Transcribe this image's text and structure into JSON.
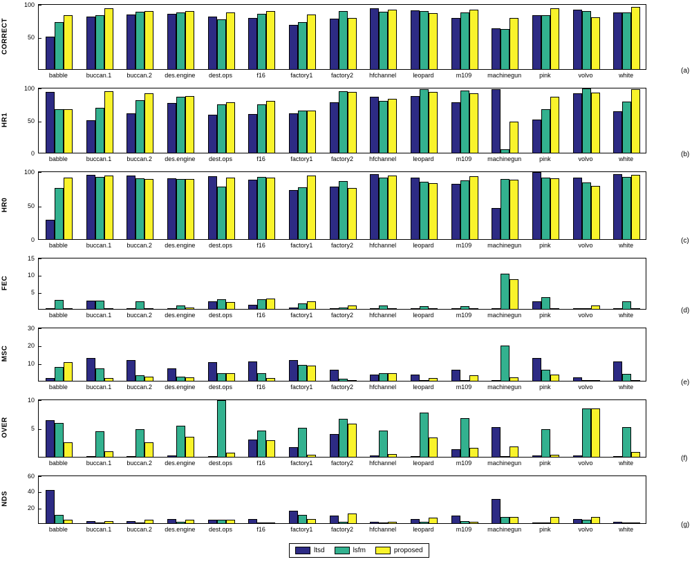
{
  "figure_title": "",
  "legend": {
    "items": [
      {
        "name": "ltsd",
        "color": "#2d2b84"
      },
      {
        "name": "lsfm",
        "color": "#33b18f"
      },
      {
        "name": "proposed",
        "color": "#f9f32b"
      }
    ]
  },
  "chart_data": {
    "type": "bar",
    "grid": false,
    "legend_position": "bottom-center",
    "categories": [
      "babble",
      "buccan.1",
      "buccan.2",
      "des.engine",
      "dest.ops",
      "f16",
      "factory1",
      "factory2",
      "hfchannel",
      "leopard",
      "m109",
      "machinegun",
      "pink",
      "volvo",
      "white"
    ],
    "series_names": [
      "ltsd",
      "lsfm",
      "proposed"
    ],
    "colors": {
      "ltsd": "#2d2b84",
      "lsfm": "#33b18f",
      "proposed": "#f9f32b"
    },
    "panels": [
      {
        "label": "(a)",
        "ylabel": "CORRECT",
        "ylim": [
          0,
          100
        ],
        "yticks": [
          50,
          100
        ],
        "series": {
          "ltsd": [
            50,
            82,
            85,
            86,
            82,
            80,
            69,
            78,
            95,
            91,
            80,
            63,
            84,
            92,
            88
          ],
          "lsfm": [
            73,
            84,
            89,
            88,
            77,
            86,
            73,
            90,
            89,
            90,
            88,
            62,
            84,
            90,
            88
          ],
          "proposed": [
            84,
            95,
            90,
            90,
            88,
            90,
            85,
            80,
            92,
            87,
            93,
            80,
            95,
            81,
            97
          ]
        }
      },
      {
        "label": "(b)",
        "ylabel": "HR1",
        "ylim": [
          0,
          100
        ],
        "yticks": [
          0,
          50,
          100
        ],
        "series": {
          "ltsd": [
            95,
            51,
            61,
            77,
            59,
            60,
            61,
            78,
            87,
            88,
            79,
            99,
            52,
            92,
            64
          ],
          "lsfm": [
            68,
            70,
            82,
            87,
            75,
            75,
            66,
            96,
            81,
            99,
            97,
            5,
            68,
            100,
            80
          ],
          "proposed": [
            68,
            96,
            92,
            88,
            79,
            81,
            66,
            95,
            84,
            95,
            93,
            48,
            87,
            94,
            99
          ]
        }
      },
      {
        "label": "(c)",
        "ylabel": "HR0",
        "ylim": [
          0,
          100
        ],
        "yticks": [
          0,
          50,
          100
        ],
        "series": {
          "ltsd": [
            29,
            96,
            95,
            91,
            94,
            89,
            73,
            78,
            97,
            92,
            82,
            46,
            100,
            92,
            97
          ],
          "lsfm": [
            76,
            93,
            91,
            90,
            78,
            93,
            77,
            87,
            92,
            86,
            88,
            90,
            92,
            85,
            93
          ],
          "proposed": [
            92,
            95,
            90,
            90,
            92,
            92,
            95,
            76,
            95,
            84,
            94,
            89,
            91,
            79,
            96
          ]
        }
      },
      {
        "label": "(d)",
        "ylabel": "FEC",
        "ylim": [
          0,
          15
        ],
        "yticks": [
          5,
          10,
          15
        ],
        "series": {
          "ltsd": [
            0.2,
            2.5,
            0.3,
            0.3,
            2.3,
            1.3,
            0.5,
            0.3,
            0.2,
            0.2,
            0.3,
            0.2,
            2.2,
            0.2,
            0.2
          ],
          "lsfm": [
            2.7,
            2.5,
            2.3,
            1.0,
            2.8,
            2.8,
            1.7,
            0.5,
            1.0,
            0.8,
            0.8,
            10.5,
            3.5,
            0.2,
            2.2
          ],
          "proposed": [
            0.2,
            0.2,
            0.2,
            0.5,
            2.0,
            3.0,
            2.2,
            1.0,
            0.2,
            0.2,
            0.2,
            8.8,
            0.2,
            1.0,
            0.2
          ]
        }
      },
      {
        "label": "(e)",
        "ylabel": "MSC",
        "ylim": [
          0,
          30
        ],
        "yticks": [
          10,
          20,
          30
        ],
        "series": {
          "ltsd": [
            1.5,
            13,
            12,
            7,
            10.5,
            11,
            12,
            6.5,
            3.5,
            3.5,
            6.5,
            0.5,
            13,
            2,
            11
          ],
          "lsfm": [
            8,
            7,
            3,
            2.5,
            4.5,
            4.5,
            9,
            1,
            4.5,
            0.5,
            0.5,
            20,
            6.5,
            0.3,
            4
          ],
          "proposed": [
            10.5,
            1.5,
            2.5,
            2,
            4.5,
            1.5,
            8.5,
            0.5,
            4.5,
            1.5,
            3,
            2,
            3.5,
            0.3,
            0.5
          ]
        }
      },
      {
        "label": "(f)",
        "ylabel": "OVER",
        "ylim": [
          0,
          10
        ],
        "yticks": [
          5,
          10
        ],
        "series": {
          "ltsd": [
            6.5,
            0.1,
            0.1,
            0.2,
            0.1,
            3,
            1.7,
            4,
            0.2,
            0.1,
            1.3,
            5.3,
            0.3,
            0.3,
            0.1
          ],
          "lsfm": [
            6,
            4.5,
            4.9,
            5.5,
            10,
            4.6,
            5.1,
            6.7,
            4.6,
            7.8,
            6.8,
            0.1,
            4.9,
            8.5,
            5.3
          ],
          "proposed": [
            2.5,
            1,
            2.6,
            3.5,
            0.7,
            2.9,
            0.4,
            5.9,
            0.5,
            3.4,
            1.6,
            1.8,
            0.4,
            8.5,
            0.9
          ]
        }
      },
      {
        "label": "(g)",
        "ylabel": "NDS",
        "ylim": [
          0,
          60
        ],
        "yticks": [
          20,
          40,
          60
        ],
        "series": {
          "ltsd": [
            42,
            3,
            3,
            5,
            4,
            5,
            16,
            10,
            2,
            5,
            10,
            31,
            1,
            5,
            2
          ],
          "lsfm": [
            11,
            1,
            1,
            2,
            4,
            1,
            11,
            2,
            1,
            2,
            3,
            8,
            0.5,
            4,
            1
          ],
          "proposed": [
            4,
            3,
            4,
            4,
            4,
            1,
            5,
            12,
            2,
            7,
            2,
            8,
            8,
            8,
            0.5
          ]
        }
      }
    ]
  }
}
